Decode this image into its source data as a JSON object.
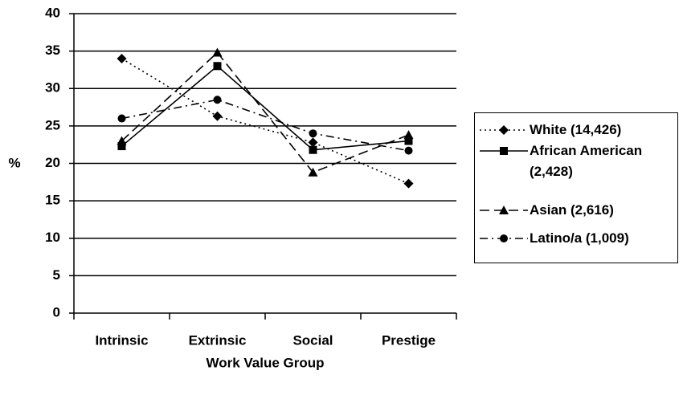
{
  "chart_data": {
    "type": "line",
    "y_label": "%",
    "x_label": "Work Value Group",
    "categories": [
      "Intrinsic",
      "Extrinsic",
      "Social",
      "Prestige"
    ],
    "ylim": [
      0,
      40
    ],
    "yticks": [
      0,
      5,
      10,
      15,
      20,
      25,
      30,
      35,
      40
    ],
    "grid": true,
    "series": [
      {
        "name": "White (14,426)",
        "color": "#000000",
        "dash": "dotted",
        "marker": "diamond",
        "values": [
          34,
          26.3,
          22.8,
          17.3
        ]
      },
      {
        "name": "African American (2,428)",
        "color": "#000000",
        "dash": "solid",
        "marker": "square",
        "values": [
          22.3,
          33,
          21.8,
          23
        ]
      },
      {
        "name": "Asian (2,616)",
        "color": "#000000",
        "dash": "dashed",
        "marker": "triangle",
        "values": [
          23,
          34.8,
          18.8,
          23.8
        ]
      },
      {
        "name": "Latino/a (1,009)",
        "color": "#000000",
        "dash": "dashdot",
        "marker": "circle",
        "values": [
          26,
          28.5,
          24,
          21.7
        ]
      }
    ]
  }
}
